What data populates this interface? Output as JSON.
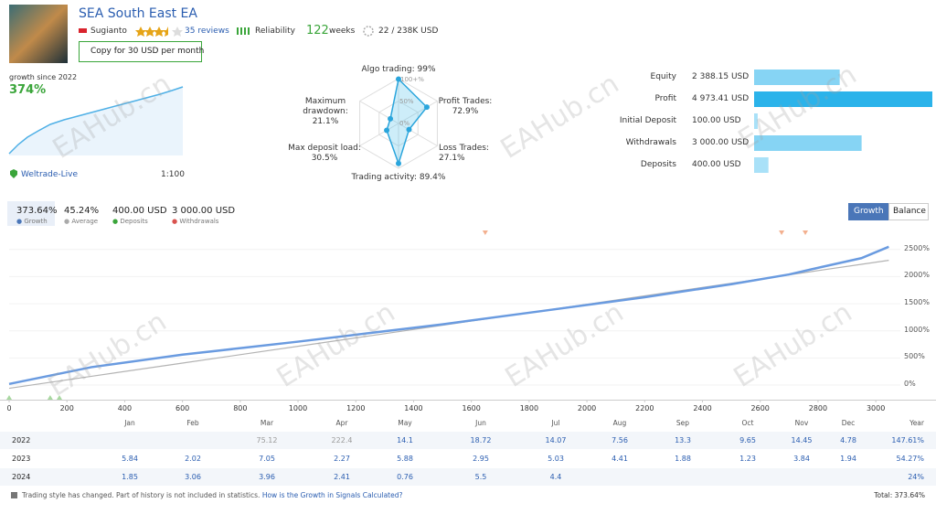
{
  "header": {
    "title": "SEA South East EA",
    "author": "Sugianto",
    "reviews": "35 reviews",
    "reliability": "Reliability",
    "weeks": "122",
    "weeks_label": "weeks",
    "subscribers": "22 / 238K USD",
    "copy_button": "Copy for 30 USD per month"
  },
  "growth": {
    "label": "growth since 2022",
    "value": "374%",
    "broker": "Weltrade-Live",
    "leverage": "1:100"
  },
  "radar": {
    "type": "radar",
    "scale_labels": [
      "100+%",
      "50%",
      "0%"
    ],
    "axes": [
      {
        "label": "Algo trading: 99%",
        "value": 99
      },
      {
        "label": "Profit Trades: 72.9%",
        "value": 72.9
      },
      {
        "label": "Loss Trades: 27.1%",
        "value": 27.1
      },
      {
        "label": "Trading activity: 89.4%",
        "value": 89.4
      },
      {
        "label": "Max deposit load: 30.5%",
        "value": 30.5
      },
      {
        "label": "Maximum drawdown: 21.1%",
        "value": 21.1
      }
    ]
  },
  "stats": {
    "type": "bar",
    "rows": [
      {
        "label": "Equity",
        "value": 2388.15,
        "value_label": "2 388.15 USD",
        "color": "#86d4f4"
      },
      {
        "label": "Profit",
        "value": 4973.41,
        "value_label": "4 973.41 USD",
        "color": "#2bb3ea"
      },
      {
        "label": "Initial Deposit",
        "value": 100,
        "value_label": "100.00 USD",
        "color": "#a9e1f8"
      },
      {
        "label": "Withdrawals",
        "value": 3000,
        "value_label": "3 000.00 USD",
        "color": "#86d4f4"
      },
      {
        "label": "Deposits",
        "value": 400,
        "value_label": "400.00 USD",
        "color": "#a9e1f8"
      }
    ]
  },
  "summary": [
    {
      "value": "373.64%",
      "label": "Growth"
    },
    {
      "value": "45.24%",
      "label": "Average"
    },
    {
      "value": "400.00 USD",
      "label": "Deposits"
    },
    {
      "value": "3 000.00 USD",
      "label": "Withdrawals"
    }
  ],
  "view_buttons": [
    "Growth",
    "Balance"
  ],
  "chart_data": {
    "type": "line",
    "x": [
      0,
      285,
      600,
      1000,
      1235,
      1500,
      1865,
      2200,
      2500,
      2700,
      2815,
      2950,
      3045
    ],
    "series": [
      {
        "name": "Growth",
        "color": "#6a9be0",
        "values": [
          20,
          330,
          560,
          800,
          950,
          1120,
          1380,
          1620,
          1860,
          2040,
          2180,
          2340,
          2550
        ]
      },
      {
        "color": "#b3b3b3",
        "values": [
          -60,
          161,
          405,
          715,
          897,
          1103,
          1385,
          1645,
          1878,
          2033,
          2122,
          2226,
          2300
        ]
      }
    ],
    "xlim": [
      0,
      3085
    ],
    "ylim": [
      -270,
      2800
    ],
    "xticks": [
      0,
      200,
      400,
      600,
      800,
      1000,
      1200,
      1400,
      1600,
      1800,
      2000,
      2200,
      2400,
      2600,
      2800,
      3000
    ],
    "yticks": [
      {
        "value": 0,
        "label": "0%"
      },
      {
        "value": 500,
        "label": "500%"
      },
      {
        "value": 1000,
        "label": "1000%"
      },
      {
        "value": 1500,
        "label": "1500%"
      },
      {
        "value": 2000,
        "label": "2000%"
      },
      {
        "value": 2500,
        "label": "2500%"
      }
    ],
    "withdrawal_markers_x": [
      1648,
      2674,
      2756
    ],
    "deposit_markers_x": [
      0,
      142,
      174
    ]
  },
  "table": {
    "columns": [
      "Jan",
      "Feb",
      "Mar",
      "Apr",
      "May",
      "Jun",
      "Jul",
      "Aug",
      "Sep",
      "Oct",
      "Nov",
      "Dec",
      "Year"
    ],
    "rows": [
      {
        "year": 2022,
        "cells": [
          null,
          null,
          75.12,
          222.4,
          14.1,
          18.72,
          14.07,
          7.56,
          13.3,
          9.65,
          14.45,
          4.78,
          "147.61%"
        ]
      },
      {
        "year": 2023,
        "cells": [
          5.84,
          2.02,
          7.05,
          2.27,
          5.88,
          2.95,
          5.03,
          4.41,
          1.88,
          1.23,
          3.84,
          1.94,
          "54.27%"
        ]
      },
      {
        "year": 2024,
        "cells": [
          1.85,
          3.06,
          3.96,
          2.41,
          0.76,
          5.5,
          4.4,
          null,
          null,
          null,
          null,
          null,
          "24%"
        ]
      }
    ]
  },
  "footer": {
    "note": "Trading style has changed. Part of history is not included in statistics.",
    "link": "How is the Growth in Signals Calculated?",
    "total": "Total: 373.64%"
  },
  "watermark": "EAHub.cn"
}
